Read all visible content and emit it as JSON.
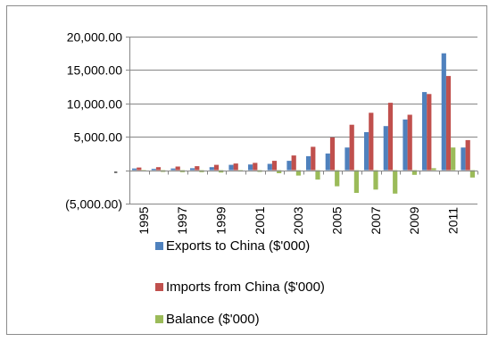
{
  "chart_data": {
    "type": "bar",
    "categories": [
      "1995",
      "1996",
      "1997",
      "1998",
      "1999",
      "2000",
      "2001",
      "2002",
      "2003",
      "2004",
      "2005",
      "2006",
      "2007",
      "2008",
      "2009",
      "2010",
      "2011",
      "2012"
    ],
    "x_tick_labels": [
      "1995",
      "1997",
      "1999",
      "2001",
      "2003",
      "2005",
      "2007",
      "2009",
      "2011"
    ],
    "y_tick_labels": [
      "20,000.00",
      "15,000.00",
      "10,000.00",
      "5,000.00",
      "-",
      "(5,000.00)"
    ],
    "y_ticks": [
      20000,
      15000,
      10000,
      5000,
      0,
      -5000
    ],
    "ylim": [
      -5000,
      20000
    ],
    "grid": true,
    "legend_position": "bottom",
    "series": [
      {
        "name": "Exports to China ($'000)",
        "color": "#4f81bd",
        "values": [
          250,
          200,
          250,
          300,
          450,
          800,
          850,
          950,
          1400,
          2100,
          2500,
          3400,
          5700,
          6600,
          7600,
          11700,
          17500,
          3400
        ]
      },
      {
        "name": "Imports from China ($'000)",
        "color": "#c0504d",
        "values": [
          400,
          450,
          550,
          600,
          800,
          1000,
          1100,
          1400,
          2200,
          3500,
          4900,
          6800,
          8600,
          10100,
          8300,
          11400,
          14100,
          4500
        ]
      },
      {
        "name": "Balance ($'000)",
        "color": "#9bbb59",
        "values": [
          -150,
          -250,
          -300,
          -300,
          -350,
          -200,
          -250,
          -450,
          -800,
          -1400,
          -2400,
          -3400,
          -2900,
          -3500,
          -700,
          300,
          3400,
          -1100
        ]
      }
    ]
  }
}
